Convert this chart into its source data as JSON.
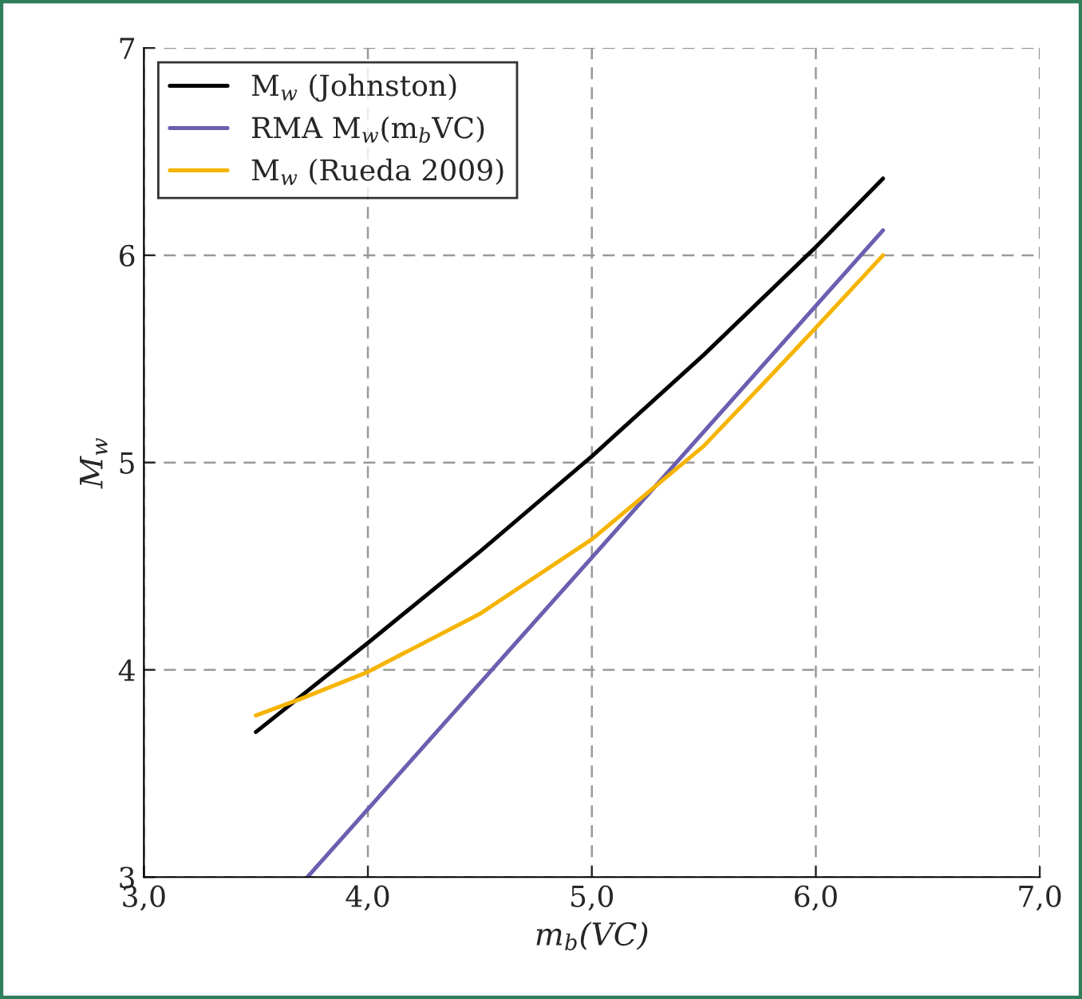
{
  "chart_data": {
    "type": "line",
    "xlabel": "m$_{b}$(VC)",
    "ylabel": "M$_{w}$",
    "xlim": [
      3.0,
      7.0
    ],
    "ylim": [
      3,
      7
    ],
    "xticks": [
      {
        "value": 3.0,
        "label": "3,0"
      },
      {
        "value": 4.0,
        "label": "4,0"
      },
      {
        "value": 5.0,
        "label": "5,0"
      },
      {
        "value": 6.0,
        "label": "6,0"
      },
      {
        "value": 7.0,
        "label": "7,0"
      }
    ],
    "yticks": [
      3,
      4,
      5,
      6,
      7
    ],
    "grid": true,
    "line_style": "solid",
    "legend": "top left",
    "marker": "none",
    "series": [
      {
        "name": "M$_{w}$ (Johnston)",
        "color": "#000000",
        "x": [
          3.5,
          4.0,
          4.5,
          5.0,
          5.5,
          6.0,
          6.3
        ],
        "values": [
          3.7,
          4.13,
          4.57,
          5.03,
          5.52,
          6.04,
          6.37
        ]
      },
      {
        "name": "RMA M$_{w}$(m$_{b}$VC)",
        "color": "#6a5fb0",
        "x": [
          3.73,
          6.3
        ],
        "values": [
          3.0,
          6.12
        ]
      },
      {
        "name": "M$_{w}$ (Rueda 2009)",
        "color": "#f5b400",
        "x": [
          3.5,
          3.7,
          4.0,
          4.5,
          5.0,
          5.3,
          5.5,
          5.8,
          6.0,
          6.3
        ],
        "values": [
          3.78,
          3.86,
          3.99,
          4.27,
          4.63,
          4.9,
          5.08,
          5.42,
          5.65,
          6.0
        ]
      }
    ]
  }
}
